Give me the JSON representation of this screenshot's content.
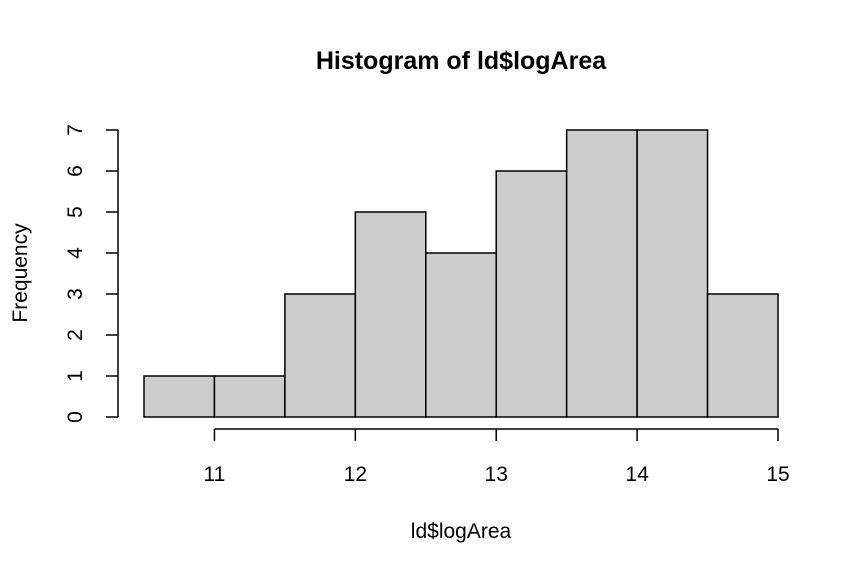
{
  "chart_data": {
    "type": "bar",
    "title": "Histogram of ld$logArea",
    "xlabel": "ld$logArea",
    "ylabel": "Frequency",
    "bin_edges": [
      10.5,
      11,
      11.5,
      12,
      12.5,
      13,
      13.5,
      14,
      14.5,
      15
    ],
    "values": [
      1,
      1,
      3,
      5,
      4,
      6,
      7,
      7,
      3
    ],
    "xlim": [
      10.5,
      15
    ],
    "ylim": [
      0,
      7
    ],
    "x_ticks": [
      11,
      12,
      13,
      14,
      15
    ],
    "x_tick_labels": [
      "11",
      "12",
      "13",
      "14",
      "15"
    ],
    "y_ticks": [
      0,
      1,
      2,
      3,
      4,
      5,
      6,
      7
    ],
    "y_tick_labels": [
      "0",
      "1",
      "2",
      "3",
      "4",
      "5",
      "6",
      "7"
    ],
    "grid": false,
    "bar_fill": "#cccccc",
    "bar_stroke": "#000000"
  }
}
